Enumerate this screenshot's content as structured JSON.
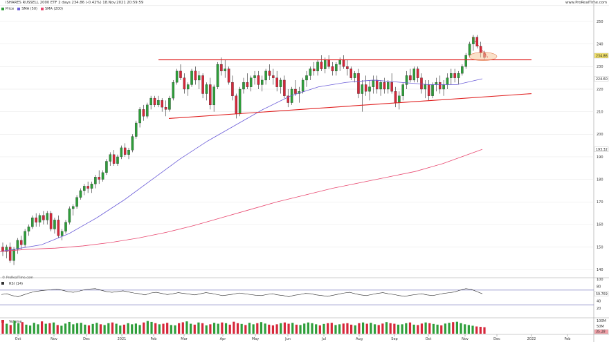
{
  "header": {
    "title": "iSHARES RUSSELL 2000 ETF 2 days 234.86 (-0.42%) 18.Nov.2021 20:59:59",
    "brand": "www.ProRealTime.com",
    "watermark": "© ProRealTime.com"
  },
  "legend": {
    "price": "Price",
    "sma50": "SMA (50)",
    "sma200": "SMA (200)",
    "rsi": "RSI (14)",
    "volume": "Volume"
  },
  "colors": {
    "up": "#2e9e3a",
    "down": "#d6273a",
    "sma50": "#6a5cd8",
    "sma200": "#e8466e",
    "trendline": "#e02020",
    "grid": "#e6e6e6"
  },
  "chart_data": {
    "type": "candlestick",
    "x_ticks": [
      "Oct",
      "Nov",
      "Dec",
      "2021",
      "Feb",
      "Mar",
      "Apr",
      "May",
      "Jun",
      "Jul",
      "Aug",
      "Sep",
      "Oct",
      "Nov",
      "Dec",
      "2022",
      "Feb"
    ],
    "y_ticks": [
      140,
      150,
      160,
      170,
      180,
      190,
      200,
      210,
      220,
      230,
      240,
      250
    ],
    "ylim": [
      137,
      254
    ],
    "last_price_label": "234.86",
    "sma50_label": "224.60",
    "sma200_label": "193.32",
    "candles": [
      [
        150,
        152,
        146,
        148
      ],
      [
        148,
        151,
        145,
        150
      ],
      [
        150,
        152,
        143,
        144
      ],
      [
        144,
        150,
        142,
        149
      ],
      [
        149,
        154,
        147,
        153
      ],
      [
        153,
        155,
        149,
        151
      ],
      [
        151,
        158,
        150,
        157
      ],
      [
        157,
        160,
        155,
        159
      ],
      [
        159,
        164,
        158,
        163
      ],
      [
        163,
        165,
        159,
        161
      ],
      [
        161,
        165,
        159,
        164
      ],
      [
        164,
        166,
        160,
        162
      ],
      [
        162,
        166,
        160,
        165
      ],
      [
        165,
        166,
        157,
        158
      ],
      [
        158,
        163,
        156,
        162
      ],
      [
        162,
        164,
        154,
        155
      ],
      [
        155,
        158,
        153,
        157
      ],
      [
        157,
        162,
        156,
        161
      ],
      [
        161,
        168,
        160,
        167
      ],
      [
        167,
        169,
        164,
        168
      ],
      [
        168,
        173,
        167,
        172
      ],
      [
        172,
        176,
        171,
        175
      ],
      [
        175,
        178,
        173,
        177
      ],
      [
        177,
        179,
        174,
        176
      ],
      [
        176,
        179,
        174,
        178
      ],
      [
        178,
        182,
        176,
        181
      ],
      [
        181,
        184,
        178,
        180
      ],
      [
        180,
        184,
        179,
        183
      ],
      [
        183,
        189,
        182,
        188
      ],
      [
        188,
        192,
        186,
        191
      ],
      [
        191,
        193,
        186,
        187
      ],
      [
        187,
        191,
        186,
        190
      ],
      [
        190,
        195,
        189,
        194
      ],
      [
        194,
        196,
        190,
        191
      ],
      [
        191,
        194,
        189,
        193
      ],
      [
        193,
        200,
        192,
        199
      ],
      [
        199,
        206,
        198,
        205
      ],
      [
        205,
        212,
        203,
        211
      ],
      [
        211,
        213,
        206,
        208
      ],
      [
        208,
        214,
        207,
        213
      ],
      [
        213,
        217,
        211,
        216
      ],
      [
        216,
        217,
        212,
        213
      ],
      [
        213,
        217,
        212,
        215
      ],
      [
        215,
        216,
        210,
        212
      ],
      [
        212,
        215,
        208,
        211
      ],
      [
        211,
        217,
        210,
        216
      ],
      [
        216,
        224,
        215,
        223
      ],
      [
        223,
        229,
        222,
        228
      ],
      [
        228,
        231,
        224,
        225
      ],
      [
        225,
        227,
        218,
        220
      ],
      [
        220,
        223,
        217,
        222
      ],
      [
        222,
        229,
        221,
        228
      ],
      [
        228,
        230,
        222,
        224
      ],
      [
        224,
        228,
        220,
        226
      ],
      [
        226,
        227,
        216,
        218
      ],
      [
        218,
        223,
        215,
        222
      ],
      [
        222,
        225,
        211,
        213
      ],
      [
        213,
        222,
        210,
        221
      ],
      [
        221,
        232,
        220,
        231
      ],
      [
        231,
        234,
        226,
        228
      ],
      [
        228,
        233,
        225,
        229
      ],
      [
        229,
        230,
        222,
        223
      ],
      [
        223,
        226,
        215,
        217
      ],
      [
        217,
        218,
        207,
        209
      ],
      [
        209,
        221,
        208,
        220
      ],
      [
        220,
        225,
        218,
        223
      ],
      [
        223,
        227,
        220,
        221
      ],
      [
        221,
        226,
        219,
        225
      ],
      [
        225,
        228,
        222,
        226
      ],
      [
        226,
        228,
        220,
        222
      ],
      [
        222,
        226,
        219,
        224
      ],
      [
        224,
        229,
        222,
        228
      ],
      [
        228,
        231,
        224,
        226
      ],
      [
        226,
        229,
        222,
        225
      ],
      [
        225,
        228,
        219,
        221
      ],
      [
        221,
        225,
        218,
        224
      ],
      [
        224,
        226,
        216,
        217
      ],
      [
        217,
        220,
        212,
        214
      ],
      [
        214,
        221,
        213,
        220
      ],
      [
        220,
        224,
        217,
        218
      ],
      [
        218,
        221,
        214,
        219
      ],
      [
        219,
        225,
        218,
        224
      ],
      [
        224,
        228,
        221,
        226
      ],
      [
        226,
        230,
        224,
        229
      ],
      [
        229,
        232,
        226,
        228
      ],
      [
        228,
        233,
        226,
        232
      ],
      [
        232,
        235,
        228,
        229
      ],
      [
        229,
        234,
        227,
        233
      ],
      [
        233,
        235,
        229,
        230
      ],
      [
        230,
        232,
        226,
        228
      ],
      [
        228,
        232,
        226,
        231
      ],
      [
        231,
        234,
        228,
        233
      ],
      [
        233,
        235,
        229,
        230
      ],
      [
        230,
        233,
        226,
        229
      ],
      [
        229,
        230,
        224,
        225
      ],
      [
        225,
        228,
        223,
        227
      ],
      [
        227,
        229,
        216,
        218
      ],
      [
        218,
        224,
        210,
        222
      ],
      [
        222,
        226,
        217,
        219
      ],
      [
        219,
        224,
        215,
        221
      ],
      [
        221,
        226,
        218,
        224
      ],
      [
        224,
        226,
        218,
        220
      ],
      [
        220,
        224,
        217,
        223
      ],
      [
        223,
        225,
        218,
        220
      ],
      [
        220,
        224,
        218,
        223
      ],
      [
        223,
        227,
        218,
        219
      ],
      [
        219,
        221,
        212,
        214
      ],
      [
        214,
        219,
        211,
        217
      ],
      [
        217,
        223,
        215,
        222
      ],
      [
        222,
        228,
        220,
        226
      ],
      [
        226,
        229,
        223,
        224
      ],
      [
        224,
        230,
        223,
        229
      ],
      [
        229,
        230,
        223,
        225
      ],
      [
        225,
        227,
        218,
        220
      ],
      [
        220,
        224,
        216,
        222
      ],
      [
        222,
        224,
        215,
        217
      ],
      [
        217,
        223,
        216,
        222
      ],
      [
        222,
        225,
        219,
        223
      ],
      [
        223,
        226,
        218,
        220
      ],
      [
        220,
        224,
        217,
        222
      ],
      [
        222,
        227,
        220,
        225
      ],
      [
        225,
        229,
        222,
        227
      ],
      [
        227,
        229,
        223,
        225
      ],
      [
        225,
        228,
        222,
        227
      ],
      [
        227,
        231,
        226,
        230
      ],
      [
        230,
        236,
        229,
        235
      ],
      [
        235,
        241,
        234,
        240
      ],
      [
        240,
        244,
        237,
        243
      ],
      [
        243,
        244,
        238,
        239
      ],
      [
        239,
        241,
        234,
        236
      ],
      [
        236,
        237,
        233,
        234
      ]
    ],
    "sma50": [
      [
        0,
        148
      ],
      [
        20,
        149
      ],
      [
        60,
        151
      ],
      [
        100,
        156
      ],
      [
        140,
        163
      ],
      [
        180,
        171
      ],
      [
        220,
        180
      ],
      [
        260,
        189
      ],
      [
        300,
        197
      ],
      [
        340,
        204
      ],
      [
        380,
        211
      ],
      [
        420,
        217
      ],
      [
        460,
        221
      ],
      [
        500,
        223
      ],
      [
        540,
        224
      ],
      [
        580,
        223
      ],
      [
        620,
        222
      ],
      [
        660,
        222
      ],
      [
        697,
        224.6
      ]
    ],
    "sma200": [
      [
        0,
        148
      ],
      [
        40,
        149
      ],
      [
        80,
        149.5
      ],
      [
        120,
        150.5
      ],
      [
        160,
        152
      ],
      [
        200,
        154
      ],
      [
        240,
        156.5
      ],
      [
        280,
        159.5
      ],
      [
        320,
        163
      ],
      [
        360,
        166.5
      ],
      [
        400,
        170
      ],
      [
        440,
        173
      ],
      [
        480,
        176
      ],
      [
        520,
        178.5
      ],
      [
        560,
        181
      ],
      [
        600,
        183.5
      ],
      [
        640,
        187
      ],
      [
        697,
        193.32
      ]
    ],
    "trendlines": [
      {
        "from": [
          "Mar-start",
          233
        ],
        "to": [
          "Dec-end",
          233
        ]
      },
      {
        "from": [
          "Feb-end",
          207
        ],
        "to": [
          "Dec-end",
          217
        ]
      }
    ],
    "rsi_ticks": [
      20,
      40,
      60,
      80,
      100
    ],
    "rsi_label": "59.769",
    "rsi_levels": [
      30,
      70
    ],
    "rsi": [
      58,
      60,
      55,
      52,
      57,
      62,
      66,
      68,
      70,
      71,
      73,
      70,
      66,
      64,
      67,
      71,
      73,
      74,
      70,
      66,
      64,
      66,
      68,
      65,
      62,
      60,
      57,
      62,
      64,
      61,
      58,
      60,
      63,
      61,
      59,
      57,
      60,
      63,
      61,
      58,
      55,
      57,
      59,
      62,
      60,
      58,
      56,
      55,
      58,
      60,
      57,
      55,
      52,
      56,
      58,
      61,
      60,
      57,
      55,
      53,
      56,
      59,
      62,
      64,
      60,
      57,
      55,
      58,
      61,
      63,
      60,
      58,
      55,
      53,
      56,
      58,
      60,
      57,
      55,
      58,
      61,
      63,
      65,
      70,
      74,
      72,
      66,
      60
    ],
    "volume_ticks": [
      "100M",
      "50M"
    ],
    "volume_label": "35.28",
    "volume": [
      62,
      55,
      48,
      72,
      58,
      64,
      50,
      45,
      60,
      52,
      68,
      55,
      58,
      62,
      48,
      44,
      56,
      65,
      52,
      58,
      60,
      50,
      46,
      54,
      60,
      52,
      48,
      58,
      62,
      55,
      45,
      50,
      58,
      52,
      56,
      48,
      62,
      70,
      65,
      58,
      52,
      55,
      60,
      48,
      46,
      58,
      63,
      68,
      55,
      50,
      62,
      58,
      46,
      52,
      60,
      55,
      62,
      58,
      50,
      66,
      58,
      54,
      48,
      60,
      52,
      58,
      64,
      56,
      50,
      46,
      52,
      58,
      62,
      55,
      60,
      50,
      48,
      56,
      62,
      58,
      52,
      46,
      54,
      58,
      60,
      48,
      52,
      56,
      58,
      50,
      46,
      58,
      62,
      55,
      60,
      52,
      48,
      56,
      64,
      58,
      55,
      50,
      52,
      58,
      62,
      50,
      48,
      56,
      62,
      58,
      54,
      50,
      46,
      56,
      60,
      64,
      66,
      58,
      52,
      48,
      44,
      40,
      38,
      36
    ],
    "volume_colors_up_ratio": 0.5
  }
}
